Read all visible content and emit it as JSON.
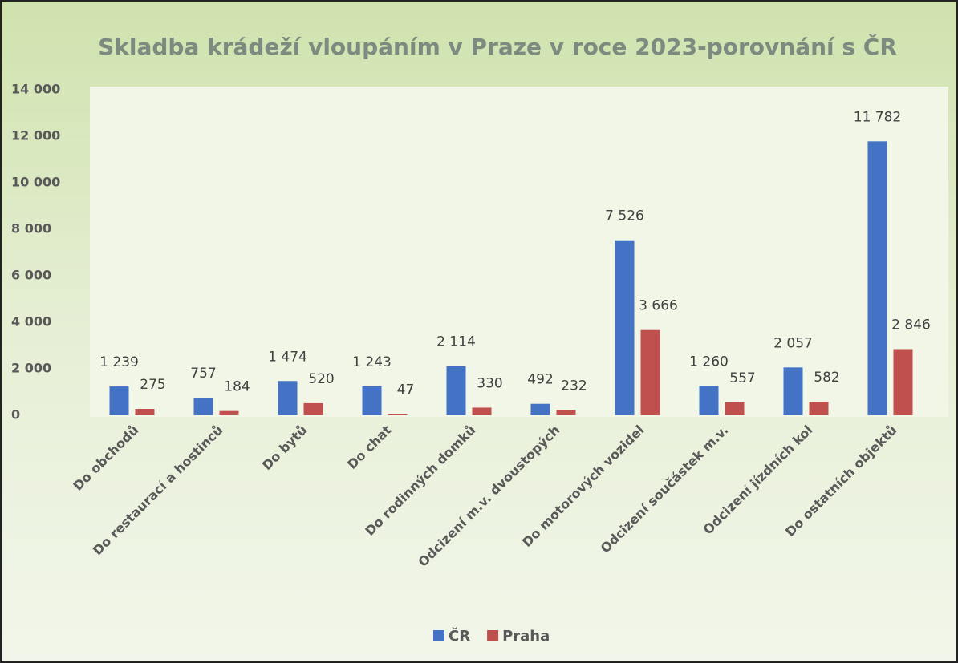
{
  "chart_data": {
    "type": "bar",
    "title": "Skladba krádeží vloupáním v Praze v roce 2023-porovnání s ČR",
    "categories": [
      "Do obchodů",
      "Do restaurací a hostinců",
      "Do bytů",
      "Do chat",
      "Do rodinných domků",
      "Odcizení m.v. dvoustopých",
      "Do motorových vozidel",
      "Odcizení součástek m.v.",
      "Odcizení jízdních kol",
      "Do ostatních objektů"
    ],
    "series": [
      {
        "name": "ČR",
        "color": "#4472c4",
        "values": [
          1239,
          757,
          1474,
          1243,
          2114,
          492,
          7526,
          1260,
          2057,
          11782
        ],
        "value_labels": [
          "1 239",
          "757",
          "1 474",
          "1 243",
          "2 114",
          "492",
          "7 526",
          "1 260",
          "2 057",
          "11 782"
        ]
      },
      {
        "name": "Praha",
        "color": "#c0504d",
        "values": [
          275,
          184,
          520,
          47,
          330,
          232,
          3666,
          557,
          582,
          2846
        ],
        "value_labels": [
          "275",
          "184",
          "520",
          "47",
          "330",
          "232",
          "3 666",
          "557",
          "582",
          "2 846"
        ]
      }
    ],
    "ylim": [
      0,
      14000
    ],
    "yticks": [
      0,
      {
        "value": 2000,
        "label": "2 000"
      },
      {
        "value": 4000,
        "label": "4 000"
      },
      {
        "value": 6000,
        "label": "6 000"
      },
      {
        "value": 8000,
        "label": "8 000"
      },
      {
        "value": 10000,
        "label": "10 000"
      },
      {
        "value": 12000,
        "label": "12 000"
      },
      {
        "value": 14000,
        "label": "14 000"
      }
    ],
    "legend": "bottom"
  }
}
